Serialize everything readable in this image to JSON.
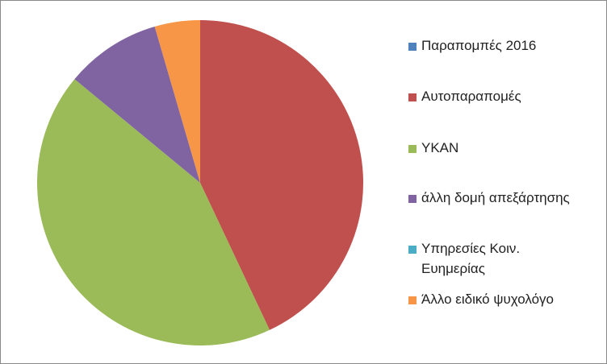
{
  "chart_data": {
    "type": "pie",
    "legend_position": "right",
    "series": [
      {
        "name": "Παραπομπές 2016",
        "value": 0,
        "color": "#4F81BD"
      },
      {
        "name": "Αυτοπαραπομές",
        "value": 43,
        "color": "#C0504D"
      },
      {
        "name": "ΥΚΑΝ",
        "value": 43,
        "color": "#9BBB59"
      },
      {
        "name": "άλλη δομή απεξάρτησης",
        "value": 9.5,
        "color": "#8064A2"
      },
      {
        "name": "Υπηρεσίες Κοιν. Ευημερίας",
        "value": 0,
        "color": "#4BACC6"
      },
      {
        "name": "Άλλο ειδικό ψυχολόγο",
        "value": 4.5,
        "color": "#F79646"
      }
    ]
  }
}
